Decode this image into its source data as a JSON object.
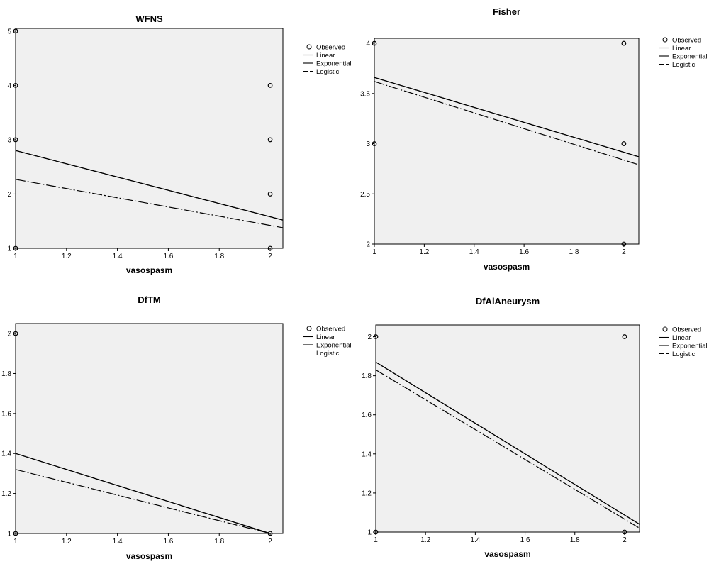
{
  "legend_labels": [
    "Observed",
    "Linear",
    "Exponential",
    "Logistic"
  ],
  "colors": {
    "plot_background": "#f0f0f0",
    "page_background": "#ffffff",
    "line": "#000000"
  },
  "chart_data": [
    {
      "type": "scatter",
      "title": "WFNS",
      "xlabel": "vasospasm",
      "ylabel": "",
      "xlim": [
        1,
        2.05
      ],
      "ylim": [
        1,
        5.05
      ],
      "xticks": [
        "1",
        "1.2",
        "1.4",
        "1.6",
        "1.8",
        "2"
      ],
      "yticks": [
        "1",
        "2",
        "3",
        "4",
        "5"
      ],
      "legend_placement": "right",
      "series": [
        {
          "name": "Observed",
          "kind": "points",
          "x": [
            1,
            1,
            1,
            1,
            2,
            2,
            2,
            2
          ],
          "y": [
            5,
            4,
            3,
            1,
            4,
            3,
            2,
            1
          ]
        },
        {
          "name": "Linear",
          "kind": "line",
          "x": [
            1,
            2.05
          ],
          "y": [
            2.8,
            1.52
          ]
        },
        {
          "name": "Exponential",
          "kind": "line",
          "x": [
            1,
            2.05
          ],
          "y": [
            2.8,
            1.52
          ]
        },
        {
          "name": "Logistic",
          "kind": "line",
          "x": [
            1,
            2.05
          ],
          "y": [
            2.27,
            1.38
          ]
        }
      ]
    },
    {
      "type": "scatter",
      "title": "Fisher",
      "xlabel": "vasospasm",
      "ylabel": "",
      "xlim": [
        1,
        2.06
      ],
      "ylim": [
        2,
        4.05
      ],
      "xticks": [
        "1",
        "1.2",
        "1.4",
        "1.6",
        "1.8",
        "2"
      ],
      "yticks": [
        "2",
        "2.5",
        "3",
        "3.5",
        "4"
      ],
      "legend_placement": "right",
      "series": [
        {
          "name": "Observed",
          "kind": "points",
          "x": [
            1,
            1,
            2,
            2,
            2
          ],
          "y": [
            4,
            3,
            4,
            3,
            2
          ]
        },
        {
          "name": "Linear",
          "kind": "line",
          "x": [
            1,
            2.06
          ],
          "y": [
            3.66,
            2.87
          ]
        },
        {
          "name": "Exponential",
          "kind": "line",
          "x": [
            1,
            2.06
          ],
          "y": [
            3.66,
            2.87
          ]
        },
        {
          "name": "Logistic",
          "kind": "line",
          "x": [
            1,
            2.06
          ],
          "y": [
            3.62,
            2.79
          ]
        }
      ]
    },
    {
      "type": "scatter",
      "title": "DfTM",
      "xlabel": "vasospasm",
      "ylabel": "",
      "xlim": [
        1,
        2.05
      ],
      "ylim": [
        1,
        2.05
      ],
      "xticks": [
        "1",
        "1.2",
        "1.4",
        "1.6",
        "1.8",
        "2"
      ],
      "yticks": [
        "1",
        "1.2",
        "1.4",
        "1.6",
        "1.8",
        "2"
      ],
      "legend_placement": "right",
      "series": [
        {
          "name": "Observed",
          "kind": "points",
          "x": [
            1,
            1,
            2
          ],
          "y": [
            2,
            1,
            1
          ]
        },
        {
          "name": "Linear",
          "kind": "line",
          "x": [
            1,
            2
          ],
          "y": [
            1.4,
            1.0
          ]
        },
        {
          "name": "Exponential",
          "kind": "line",
          "x": [
            1,
            2
          ],
          "y": [
            1.4,
            1.0
          ]
        },
        {
          "name": "Logistic",
          "kind": "line",
          "x": [
            1,
            2
          ],
          "y": [
            1.32,
            1.0
          ]
        }
      ]
    },
    {
      "type": "scatter",
      "title": "DfAlAneurysm",
      "xlabel": "vasospasm",
      "ylabel": "",
      "xlim": [
        1,
        2.06
      ],
      "ylim": [
        1,
        2.06
      ],
      "xticks": [
        "1",
        "1.2",
        "1.4",
        "1.6",
        "1.8",
        "2"
      ],
      "yticks": [
        "1",
        "1.2",
        "1.4",
        "1.6",
        "1.8",
        "2"
      ],
      "legend_placement": "right",
      "series": [
        {
          "name": "Observed",
          "kind": "points",
          "x": [
            1,
            1,
            2,
            2
          ],
          "y": [
            2,
            1,
            2,
            1
          ]
        },
        {
          "name": "Linear",
          "kind": "line",
          "x": [
            1,
            2.06
          ],
          "y": [
            1.87,
            1.04
          ]
        },
        {
          "name": "Exponential",
          "kind": "line",
          "x": [
            1,
            2.06
          ],
          "y": [
            1.87,
            1.04
          ]
        },
        {
          "name": "Logistic",
          "kind": "line",
          "x": [
            1,
            2.06
          ],
          "y": [
            1.83,
            1.02
          ]
        }
      ]
    }
  ]
}
